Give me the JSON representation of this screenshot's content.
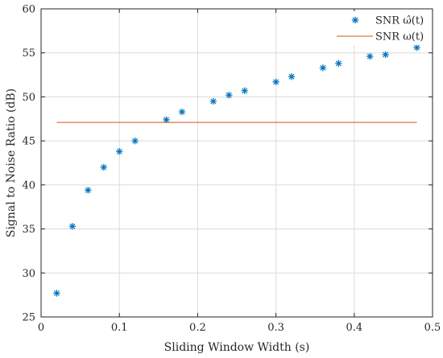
{
  "chart_data": {
    "type": "scatter",
    "xlabel": "Sliding Window Width (s)",
    "ylabel": "Signal to Noise Ratio (dB)",
    "xlim": [
      0,
      0.5
    ],
    "ylim": [
      25,
      60
    ],
    "xticks": [
      0,
      0.1,
      0.2,
      0.3,
      0.4,
      0.5
    ],
    "xtick_labels": [
      "0",
      "0.1",
      "0.2",
      "0.3",
      "0.4",
      "0.5"
    ],
    "yticks": [
      25,
      30,
      35,
      40,
      45,
      50,
      55,
      60
    ],
    "ytick_labels": [
      "25",
      "30",
      "35",
      "40",
      "45",
      "50",
      "55",
      "60"
    ],
    "grid": true,
    "legend_position": "top-right",
    "series": [
      {
        "name": "SNR ω̂(t)",
        "kind": "scatter",
        "marker": "asterisk",
        "color": "#0072BD",
        "x": [
          0.02,
          0.04,
          0.06,
          0.08,
          0.1,
          0.12,
          0.16,
          0.18,
          0.22,
          0.24,
          0.26,
          0.3,
          0.32,
          0.36,
          0.38,
          0.42,
          0.44,
          0.48
        ],
        "y": [
          27.7,
          35.3,
          39.4,
          42.0,
          43.8,
          45.0,
          47.4,
          48.3,
          49.5,
          50.2,
          50.7,
          51.7,
          52.3,
          53.3,
          53.8,
          54.6,
          54.8,
          55.6
        ]
      },
      {
        "name": "SNR ω(t)",
        "kind": "line",
        "color": "#D95319",
        "x": [
          0.02,
          0.48
        ],
        "y": [
          47.1,
          47.1
        ]
      }
    ]
  }
}
